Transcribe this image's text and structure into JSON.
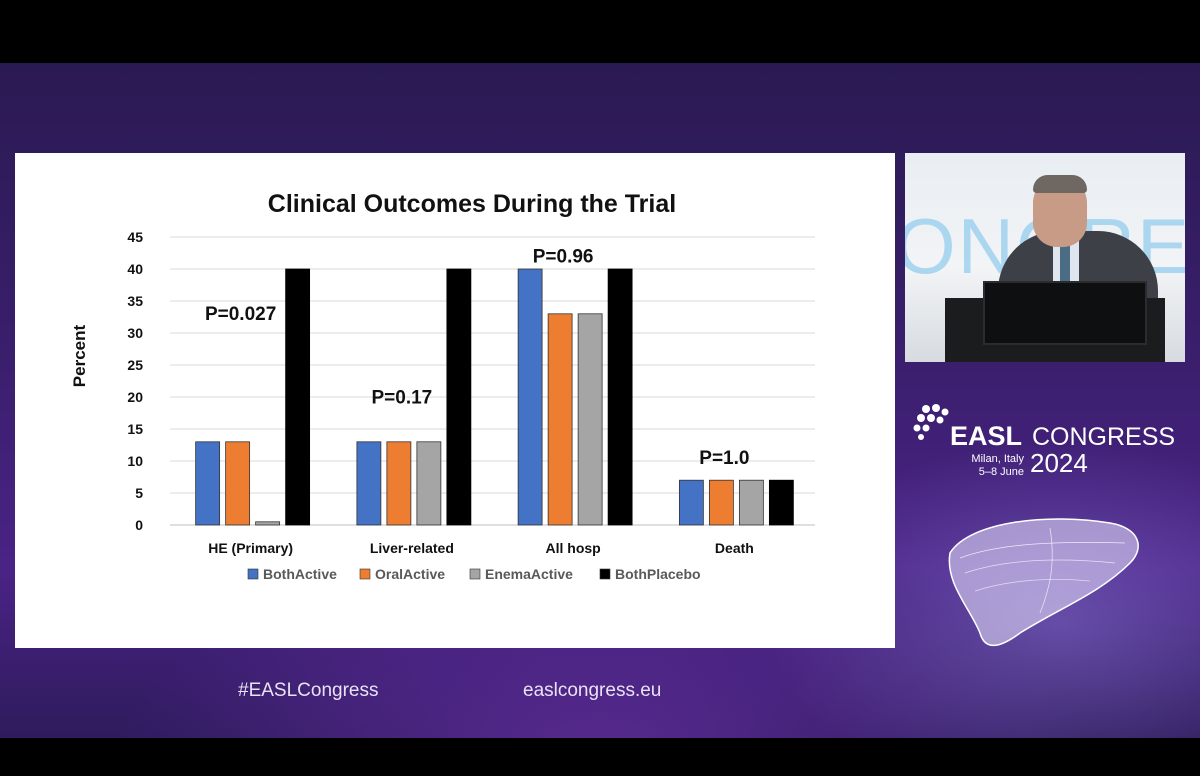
{
  "slide": {
    "title": "Clinical Outcomes During the Trial"
  },
  "chart_data": {
    "type": "bar",
    "title": "Clinical Outcomes During the Trial",
    "xlabel": "",
    "ylabel": "Percent",
    "ylim": [
      0,
      45
    ],
    "yticks": [
      0,
      5,
      10,
      15,
      20,
      25,
      30,
      35,
      40,
      45
    ],
    "grid": true,
    "legend": "bottom",
    "categories": [
      "HE (Primary)",
      "Liver-related",
      "All hosp",
      "Death"
    ],
    "series": [
      {
        "name": "BothActive",
        "color": "#4472c4",
        "values": [
          13,
          13,
          40,
          7
        ]
      },
      {
        "name": "OralActive",
        "color": "#ed7d31",
        "values": [
          13,
          13,
          33,
          7
        ]
      },
      {
        "name": "EnemaActive",
        "color": "#a5a5a5",
        "values": [
          0.5,
          13,
          33,
          7
        ]
      },
      {
        "name": "BothPlacebo",
        "color": "#000000",
        "values": [
          40,
          40,
          40,
          7
        ]
      }
    ],
    "annotations": [
      {
        "category": "HE (Primary)",
        "text": "P=0.027",
        "y": 32
      },
      {
        "category": "Liver-related",
        "text": "P=0.17",
        "y": 19
      },
      {
        "category": "All hosp",
        "text": "P=0.96",
        "y": 41
      },
      {
        "category": "Death",
        "text": "P=1.0",
        "y": 9.5
      }
    ]
  },
  "branding": {
    "easl": "EASL",
    "congress": "CONGRESS",
    "location": "Milan, Italy",
    "dates": "5–8 June",
    "year": "2024",
    "hashtag": "#EASLCongress",
    "website": "easlcongress.eu"
  },
  "colors": {
    "background_purple": "#3b1f6e",
    "slide_bg": "#ffffff"
  }
}
